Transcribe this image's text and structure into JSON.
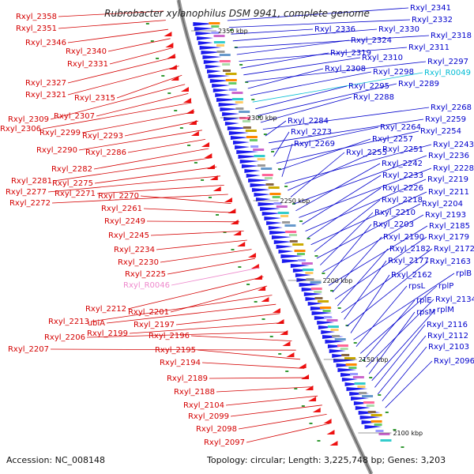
{
  "title": "Rubrobacter xylanophilus DSM 9941, complete genome",
  "footer": {
    "accession": "Accession: NC_008148",
    "topology": "Topology: circular; Length: 3,225,748 bp; Genes: 3,203"
  },
  "colors": {
    "left_label": "#d40000",
    "right_label": "#0000cc",
    "rna_label_right": "#00bcd4",
    "rna_label_left": "#ee88cc",
    "backbone": "#777777",
    "tick": "#339933"
  },
  "kbp_markers": [
    "2350 kbp",
    "2300 kbp",
    "2250 kbp",
    "2200 kbp",
    "2150 kbp",
    "2100 kbp"
  ],
  "left_labels": [
    {
      "text": "Rxyl_2358",
      "kind": "gene"
    },
    {
      "text": "Rxyl_2351",
      "kind": "gene"
    },
    {
      "text": "Rxyl_2346",
      "kind": "gene"
    },
    {
      "text": "Rxyl_2340",
      "kind": "gene"
    },
    {
      "text": "Rxyl_2331",
      "kind": "gene"
    },
    {
      "text": "Rxyl_2327",
      "kind": "gene"
    },
    {
      "text": "Rxyl_2321",
      "kind": "gene"
    },
    {
      "text": "Rxyl_2315",
      "kind": "gene"
    },
    {
      "text": "Rxyl_2309",
      "kind": "gene"
    },
    {
      "text": "Rxyl_2307",
      "kind": "gene"
    },
    {
      "text": "Rxyl_2306",
      "kind": "gene"
    },
    {
      "text": "Rxyl_2299",
      "kind": "gene"
    },
    {
      "text": "Rxyl_2293",
      "kind": "gene"
    },
    {
      "text": "Rxyl_2290",
      "kind": "gene"
    },
    {
      "text": "Rxyl_2286",
      "kind": "gene"
    },
    {
      "text": "Rxyl_2282",
      "kind": "gene"
    },
    {
      "text": "Rxyl_2281",
      "kind": "gene"
    },
    {
      "text": "Rxyl_2275",
      "kind": "gene"
    },
    {
      "text": "Rxyl_2277",
      "kind": "gene"
    },
    {
      "text": "Rxyl_2271",
      "kind": "gene"
    },
    {
      "text": "Rxyl_2272",
      "kind": "gene"
    },
    {
      "text": "Rxyl_2270",
      "kind": "gene"
    },
    {
      "text": "Rxyl_2261",
      "kind": "gene"
    },
    {
      "text": "Rxyl_2249",
      "kind": "gene"
    },
    {
      "text": "Rxyl_2245",
      "kind": "gene"
    },
    {
      "text": "Rxyl_2234",
      "kind": "gene"
    },
    {
      "text": "Rxyl_2230",
      "kind": "gene"
    },
    {
      "text": "Rxyl_2225",
      "kind": "gene"
    },
    {
      "text": "Rxyl_R0046",
      "kind": "rna"
    },
    {
      "text": "Rxyl_2212",
      "kind": "gene"
    },
    {
      "text": "Rxyl_2201",
      "kind": "gene"
    },
    {
      "text": "Rxyl_2213",
      "kind": "gene"
    },
    {
      "text": "ubiA",
      "kind": "gene"
    },
    {
      "text": "Rxyl_2197",
      "kind": "gene"
    },
    {
      "text": "Rxyl_2199",
      "kind": "gene"
    },
    {
      "text": "Rxyl_2206",
      "kind": "gene"
    },
    {
      "text": "Rxyl_2196",
      "kind": "gene"
    },
    {
      "text": "Rxyl_2207",
      "kind": "gene"
    },
    {
      "text": "Rxyl_2195",
      "kind": "gene"
    },
    {
      "text": "Rxyl_2194",
      "kind": "gene"
    },
    {
      "text": "Rxyl_2189",
      "kind": "gene"
    },
    {
      "text": "Rxyl_2188",
      "kind": "gene"
    },
    {
      "text": "Rxyl_2104",
      "kind": "gene"
    },
    {
      "text": "Rxyl_2099",
      "kind": "gene"
    },
    {
      "text": "Rxyl_2098",
      "kind": "gene"
    },
    {
      "text": "Rxyl_2097",
      "kind": "gene"
    }
  ],
  "right_labels": [
    {
      "text": "Rxyl_2341",
      "kind": "gene"
    },
    {
      "text": "Rxyl_2332",
      "kind": "gene"
    },
    {
      "text": "Rxyl_2336",
      "kind": "gene"
    },
    {
      "text": "Rxyl_2330",
      "kind": "gene"
    },
    {
      "text": "Rxyl_2318",
      "kind": "gene"
    },
    {
      "text": "Rxyl_2324",
      "kind": "gene"
    },
    {
      "text": "Rxyl_2311",
      "kind": "gene"
    },
    {
      "text": "Rxyl_2319",
      "kind": "gene"
    },
    {
      "text": "Rxyl_2310",
      "kind": "gene"
    },
    {
      "text": "Rxyl_2297",
      "kind": "gene"
    },
    {
      "text": "Rxyl_2308",
      "kind": "gene"
    },
    {
      "text": "Rxyl_2298",
      "kind": "gene"
    },
    {
      "text": "Rxyl_R0049",
      "kind": "rna"
    },
    {
      "text": "Rxyl_2295",
      "kind": "gene"
    },
    {
      "text": "Rxyl_2289",
      "kind": "gene"
    },
    {
      "text": "Rxyl_2288",
      "kind": "gene"
    },
    {
      "text": "Rxyl_2268",
      "kind": "gene"
    },
    {
      "text": "Rxyl_2284",
      "kind": "gene"
    },
    {
      "text": "Rxyl_2259",
      "kind": "gene"
    },
    {
      "text": "Rxyl_2264",
      "kind": "gene"
    },
    {
      "text": "Rxyl_2273",
      "kind": "gene"
    },
    {
      "text": "Rxyl_2254",
      "kind": "gene"
    },
    {
      "text": "Rxyl_2257",
      "kind": "gene"
    },
    {
      "text": "Rxyl_2269",
      "kind": "gene"
    },
    {
      "text": "Rxyl_2243",
      "kind": "gene"
    },
    {
      "text": "Rxyl_2251",
      "kind": "gene"
    },
    {
      "text": "Rxyl_2255",
      "kind": "gene"
    },
    {
      "text": "Rxyl_2236",
      "kind": "gene"
    },
    {
      "text": "Rxyl_2242",
      "kind": "gene"
    },
    {
      "text": "Rxyl_2228",
      "kind": "gene"
    },
    {
      "text": "Rxyl_2233",
      "kind": "gene"
    },
    {
      "text": "Rxyl_2219",
      "kind": "gene"
    },
    {
      "text": "Rxyl_2226",
      "kind": "gene"
    },
    {
      "text": "Rxyl_2211",
      "kind": "gene"
    },
    {
      "text": "Rxyl_2218",
      "kind": "gene"
    },
    {
      "text": "Rxyl_2204",
      "kind": "gene"
    },
    {
      "text": "Rxyl_2210",
      "kind": "gene"
    },
    {
      "text": "Rxyl_2193",
      "kind": "gene"
    },
    {
      "text": "Rxyl_2203",
      "kind": "gene"
    },
    {
      "text": "Rxyl_2185",
      "kind": "gene"
    },
    {
      "text": "Rxyl_2190",
      "kind": "gene"
    },
    {
      "text": "Rxyl_2179",
      "kind": "gene"
    },
    {
      "text": "Rxyl_2182",
      "kind": "gene"
    },
    {
      "text": "Rxyl_2172",
      "kind": "gene"
    },
    {
      "text": "Rxyl_2177",
      "kind": "gene"
    },
    {
      "text": "Rxyl_2163",
      "kind": "gene"
    },
    {
      "text": "Rxyl_2162",
      "kind": "gene"
    },
    {
      "text": "rplB",
      "kind": "gene"
    },
    {
      "text": "rpsL",
      "kind": "gene"
    },
    {
      "text": "rplP",
      "kind": "gene"
    },
    {
      "text": "rplE",
      "kind": "gene"
    },
    {
      "text": "Rxyl_2134",
      "kind": "gene"
    },
    {
      "text": "rpsM",
      "kind": "gene"
    },
    {
      "text": "rplM",
      "kind": "gene"
    },
    {
      "text": "Rxyl_2116",
      "kind": "gene"
    },
    {
      "text": "Rxyl_2112",
      "kind": "gene"
    },
    {
      "text": "Rxyl_2103",
      "kind": "gene"
    },
    {
      "text": "Rxyl_2096",
      "kind": "gene"
    }
  ]
}
